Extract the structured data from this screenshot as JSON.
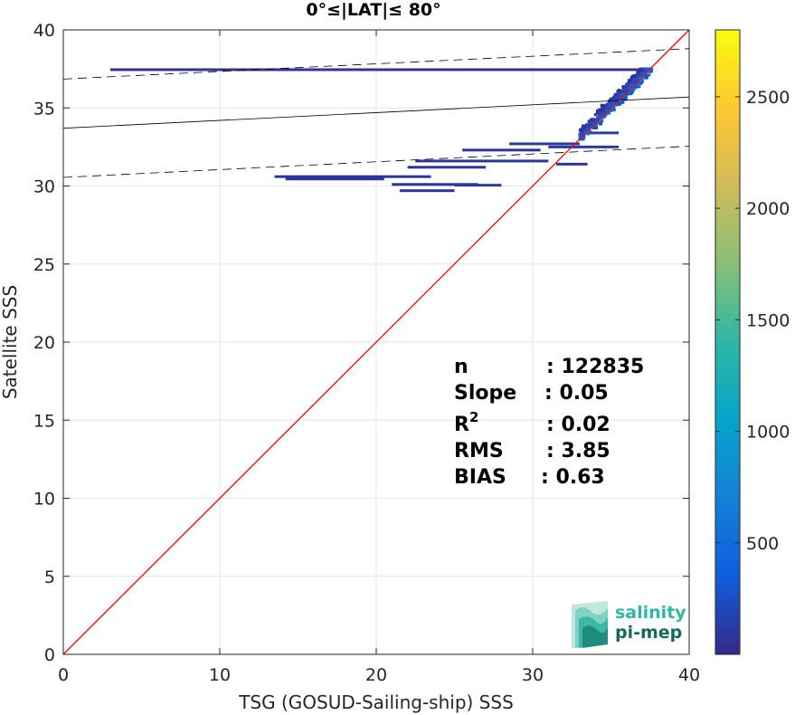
{
  "chart_data": {
    "type": "heatmap",
    "title": "0°≤|LAT|≤ 80°",
    "xlabel": "TSG (GOSUD-Sailing-ship) SSS",
    "ylabel": "Satellite SSS",
    "xlim": [
      0,
      40
    ],
    "ylim": [
      0,
      40
    ],
    "x_ticks": [
      "0",
      "10",
      "20",
      "30",
      "40"
    ],
    "y_ticks": [
      "0",
      "5",
      "10",
      "15",
      "20",
      "25",
      "30",
      "35",
      "40"
    ],
    "grid": true,
    "colorbar": {
      "range": [
        0,
        2800
      ],
      "ticks": [
        "500",
        "1000",
        "1500",
        "2000",
        "2500"
      ],
      "colormap": "parula",
      "colors": [
        "#352a87",
        "#0f5cdd",
        "#1481d6",
        "#06a4ca",
        "#2eb7a4",
        "#87bf77",
        "#d1bb59",
        "#fec832",
        "#f9fb0e"
      ]
    },
    "lines": [
      {
        "name": "identity",
        "style": "solid",
        "color": "#ff0000",
        "x": [
          0,
          40
        ],
        "y": [
          0,
          40
        ]
      },
      {
        "name": "regression",
        "style": "solid",
        "color": "#000000",
        "x": [
          0,
          40
        ],
        "y": [
          33.7,
          35.7
        ]
      },
      {
        "name": "upper-bound",
        "style": "dashed",
        "color": "#000000",
        "x": [
          0,
          40
        ],
        "y": [
          36.85,
          38.8
        ]
      },
      {
        "name": "lower-bound",
        "style": "dashed",
        "color": "#000000",
        "x": [
          0,
          40
        ],
        "y": [
          30.55,
          32.55
        ]
      }
    ],
    "density_segments": [
      {
        "x0": 3.0,
        "x1": 37.3,
        "y": 37.45,
        "count": 60
      },
      {
        "x0": 13.5,
        "x1": 23.5,
        "y": 30.6,
        "count": 80
      },
      {
        "x0": 14.2,
        "x1": 20.5,
        "y": 30.45,
        "count": 60
      },
      {
        "x0": 21.0,
        "x1": 26.5,
        "y": 30.1,
        "count": 90
      },
      {
        "x0": 25.0,
        "x1": 28.0,
        "y": 30.05,
        "count": 110
      },
      {
        "x0": 21.5,
        "x1": 25.0,
        "y": 29.7,
        "count": 90
      },
      {
        "x0": 22.0,
        "x1": 27.0,
        "y": 31.2,
        "count": 80
      },
      {
        "x0": 22.5,
        "x1": 31.0,
        "y": 31.6,
        "count": 80
      },
      {
        "x0": 25.5,
        "x1": 30.5,
        "y": 32.3,
        "count": 90
      },
      {
        "x0": 28.5,
        "x1": 33.0,
        "y": 32.7,
        "count": 100
      },
      {
        "x0": 31.0,
        "x1": 35.5,
        "y": 32.5,
        "count": 100
      },
      {
        "x0": 33.0,
        "x1": 35.5,
        "y": 33.4,
        "count": 150
      },
      {
        "x0": 31.5,
        "x1": 33.5,
        "y": 31.4,
        "count": 80
      }
    ],
    "dense_cluster": {
      "x_range": [
        33.0,
        37.5
      ],
      "y_range": [
        33.0,
        37.5
      ],
      "peak_count": 700
    },
    "stats": {
      "n": {
        "label": "n",
        "value": ": 122835"
      },
      "slope": {
        "label": "Slope",
        "value": ": 0.05"
      },
      "r2": {
        "label": "R",
        "sup": "2",
        "value": ": 0.02"
      },
      "rms": {
        "label": "RMS",
        "value": ": 3.85"
      },
      "bias": {
        "label": "BIAS",
        "value": ": 0.63"
      }
    }
  },
  "logo": {
    "line1": "salinity",
    "line2": "pi-mep",
    "color1": "#2fb8a3",
    "color2": "#13695e"
  }
}
